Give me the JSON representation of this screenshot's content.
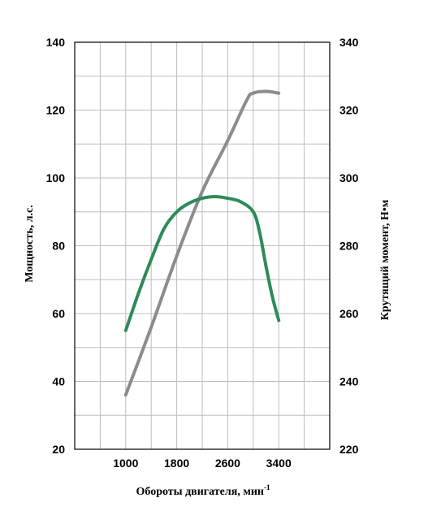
{
  "chart_data": {
    "type": "line",
    "xlabel": "Обороты двигателя, мин",
    "xlabel_superscript": "-1",
    "ylabel_left": "Мощность, л.с.",
    "ylabel_right": "Крутящий момент, Н•м",
    "xlim": [
      200,
      4200
    ],
    "ylim_left": [
      20,
      140
    ],
    "ylim_right": [
      220,
      340
    ],
    "x_ticks": [
      1000,
      1800,
      2600,
      3400
    ],
    "x_grid_step": 400,
    "y_ticks_left": [
      20,
      40,
      60,
      80,
      100,
      120,
      140
    ],
    "y_ticks_right": [
      220,
      240,
      260,
      280,
      300,
      320,
      340
    ],
    "y_grid_step_left": 10,
    "grid": true,
    "legend": "none",
    "series": [
      {
        "axis": "left",
        "color": "#8c8c8c",
        "points": [
          [
            1000,
            36
          ],
          [
            1400,
            56
          ],
          [
            1800,
            77
          ],
          [
            2200,
            96
          ],
          [
            2600,
            111
          ],
          [
            2900,
            123
          ],
          [
            3000,
            125
          ],
          [
            3200,
            125.5
          ],
          [
            3400,
            125
          ]
        ]
      },
      {
        "axis": "right",
        "color": "#2e8b57",
        "points": [
          [
            1000,
            255
          ],
          [
            1200,
            266
          ],
          [
            1400,
            276
          ],
          [
            1600,
            285
          ],
          [
            1800,
            290
          ],
          [
            2000,
            292.6
          ],
          [
            2200,
            294
          ],
          [
            2400,
            294.5
          ],
          [
            2600,
            294
          ],
          [
            2800,
            293
          ],
          [
            3000,
            290
          ],
          [
            3100,
            284
          ],
          [
            3200,
            274
          ],
          [
            3300,
            265
          ],
          [
            3400,
            258
          ]
        ]
      }
    ]
  }
}
